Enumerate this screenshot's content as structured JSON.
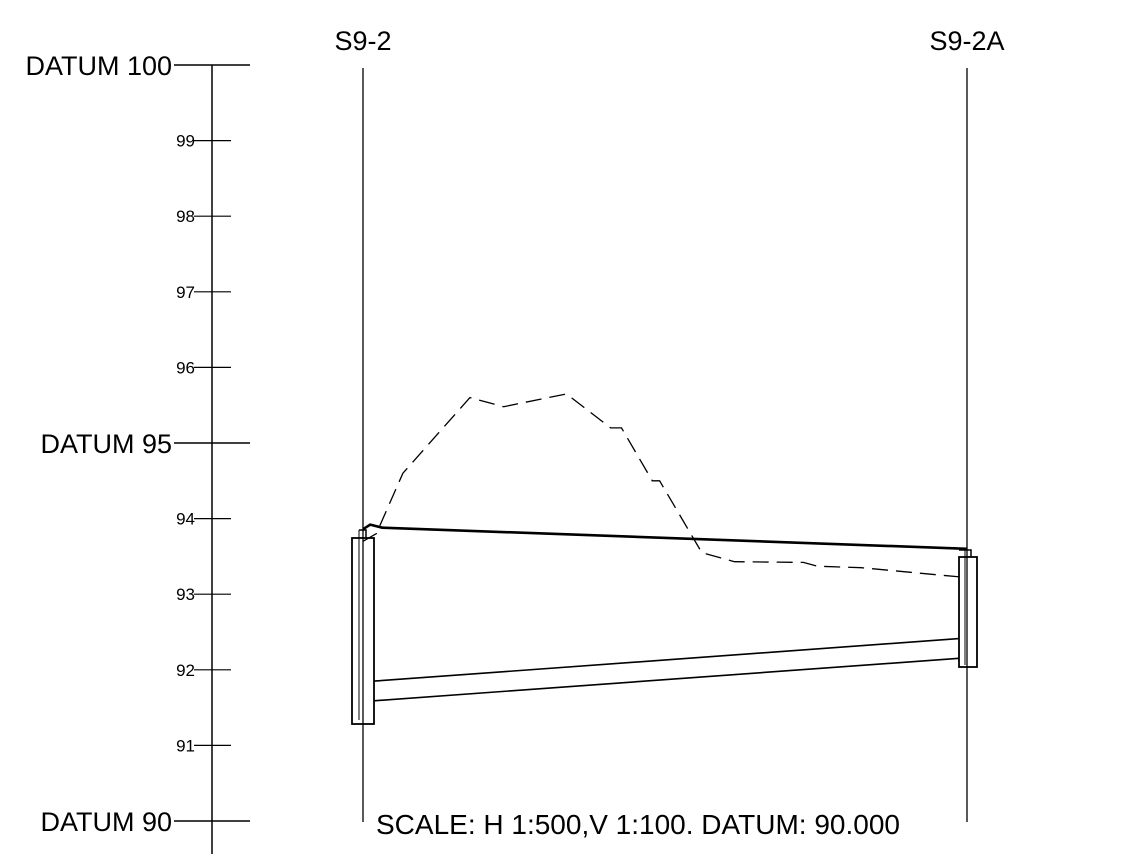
{
  "manholes": [
    {
      "label": "S9-2",
      "chainage": 0
    },
    {
      "label": "S9-2A",
      "chainage": 1
    }
  ],
  "datum_labels": [
    {
      "text": "DATUM 100",
      "level": 100
    },
    {
      "text": "DATUM 95",
      "level": 95
    },
    {
      "text": "DATUM 90",
      "level": 90
    }
  ],
  "minor_ticks": [
    {
      "text": "99",
      "level": 99
    },
    {
      "text": "98",
      "level": 98
    },
    {
      "text": "97",
      "level": 97
    },
    {
      "text": "96",
      "level": 96
    },
    {
      "text": "94",
      "level": 94
    },
    {
      "text": "93",
      "level": 93
    },
    {
      "text": "92",
      "level": 92
    },
    {
      "text": "91",
      "level": 91
    }
  ],
  "scale_note": "SCALE: H 1:500,V 1:100. DATUM: 90.000",
  "profiles": {
    "existing_ground": [
      [
        0.0,
        93.7
      ],
      [
        0.022,
        93.8
      ],
      [
        0.066,
        94.6
      ],
      [
        0.177,
        95.6
      ],
      [
        0.233,
        95.48
      ],
      [
        0.337,
        95.65
      ],
      [
        0.41,
        95.2
      ],
      [
        0.428,
        95.2
      ],
      [
        0.479,
        94.5
      ],
      [
        0.491,
        94.5
      ],
      [
        0.561,
        93.55
      ],
      [
        0.615,
        93.43
      ],
      [
        0.729,
        93.42
      ],
      [
        0.752,
        93.37
      ],
      [
        0.825,
        93.35
      ],
      [
        1.0,
        93.22
      ]
    ],
    "proposed_road": [
      [
        0.0,
        93.86
      ],
      [
        0.012,
        93.92
      ],
      [
        0.032,
        93.88
      ],
      [
        1.0,
        93.6
      ]
    ],
    "pipe_top": [
      [
        0.0,
        91.84
      ],
      [
        1.0,
        92.42
      ]
    ],
    "pipe_bottom": [
      [
        0.0,
        91.58
      ],
      [
        1.0,
        92.16
      ]
    ]
  }
}
